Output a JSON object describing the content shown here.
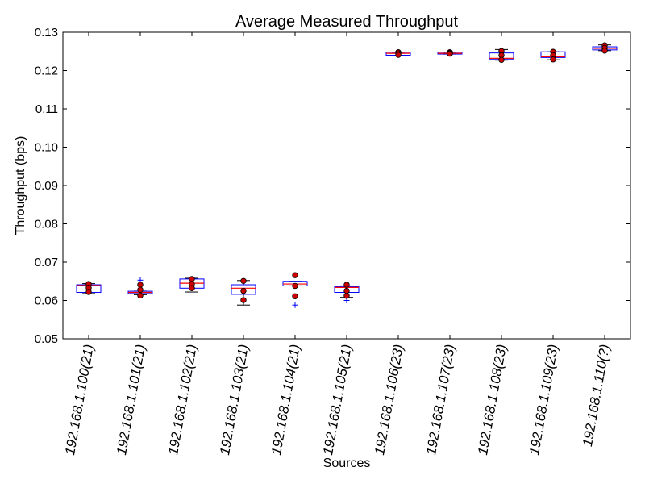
{
  "chart_data": {
    "type": "box",
    "title": "Average Measured Throughput",
    "xlabel": "Sources",
    "ylabel": "Throughput (bps)",
    "ylim": [
      0.05,
      0.13
    ],
    "yticks": [
      "0.05",
      "0.06",
      "0.07",
      "0.08",
      "0.09",
      "0.10",
      "0.11",
      "0.12",
      "0.13"
    ],
    "grid": false,
    "colors": {
      "box": "#0000ff",
      "median": "#ff0000",
      "whisker": "#000000",
      "flier": "#0000ff",
      "point_fill": "#cc0000",
      "point_edge": "#000000"
    },
    "categories": [
      "192.168.1.100(21)",
      "192.168.1.101(21)",
      "192.168.1.102(21)",
      "192.168.1.103(21)",
      "192.168.1.104(21)",
      "192.168.1.105(21)",
      "192.168.1.106(23)",
      "192.168.1.107(23)",
      "192.168.1.108(23)",
      "192.168.1.109(23)",
      "192.168.1.110(?)"
    ],
    "boxes": [
      {
        "whislo": 0.0618,
        "q1": 0.0621,
        "med": 0.0639,
        "q3": 0.0641,
        "whishi": 0.0644,
        "fliers": [],
        "points": [
          0.0643,
          0.0633,
          0.0622
        ]
      },
      {
        "whislo": 0.0615,
        "q1": 0.0618,
        "med": 0.0621,
        "q3": 0.0624,
        "whishi": 0.0627,
        "fliers": [
          0.0653
        ],
        "points": [
          0.0641,
          0.0628,
          0.0613
        ]
      },
      {
        "whislo": 0.0622,
        "q1": 0.0632,
        "med": 0.0645,
        "q3": 0.0656,
        "whishi": 0.0658,
        "fliers": [],
        "points": [
          0.0656,
          0.0643,
          0.0632
        ]
      },
      {
        "whislo": 0.0588,
        "q1": 0.0616,
        "med": 0.0632,
        "q3": 0.0641,
        "whishi": 0.0652,
        "fliers": [],
        "points": [
          0.0651,
          0.0625,
          0.0601
        ]
      },
      {
        "whislo": 0.0638,
        "q1": 0.0638,
        "med": 0.0643,
        "q3": 0.065,
        "whishi": 0.065,
        "fliers": [
          0.0588
        ],
        "points": [
          0.0666,
          0.0638,
          0.0611
        ]
      },
      {
        "whislo": 0.0608,
        "q1": 0.0621,
        "med": 0.0634,
        "q3": 0.0636,
        "whishi": 0.0638,
        "fliers": [
          0.06
        ],
        "points": [
          0.0641,
          0.0625,
          0.0612
        ]
      },
      {
        "whislo": 0.124,
        "q1": 0.124,
        "med": 0.1245,
        "q3": 0.1248,
        "whishi": 0.1248,
        "fliers": [],
        "points": [
          0.1248,
          0.1245,
          0.1241
        ]
      },
      {
        "whislo": 0.1243,
        "q1": 0.1243,
        "med": 0.1245,
        "q3": 0.1248,
        "whishi": 0.1248,
        "fliers": [],
        "points": [
          0.1248,
          0.1246,
          0.1244
        ]
      },
      {
        "whislo": 0.1227,
        "q1": 0.123,
        "med": 0.1232,
        "q3": 0.1246,
        "whishi": 0.1255,
        "fliers": [],
        "points": [
          0.1251,
          0.124,
          0.1228
        ]
      },
      {
        "whislo": 0.1228,
        "q1": 0.1234,
        "med": 0.1236,
        "q3": 0.1249,
        "whishi": 0.1249,
        "fliers": [],
        "points": [
          0.1249,
          0.124,
          0.1229
        ]
      },
      {
        "whislo": 0.1252,
        "q1": 0.1254,
        "med": 0.1258,
        "q3": 0.1262,
        "whishi": 0.1267,
        "fliers": [],
        "points": [
          0.1266,
          0.1259,
          0.1252
        ]
      }
    ]
  }
}
